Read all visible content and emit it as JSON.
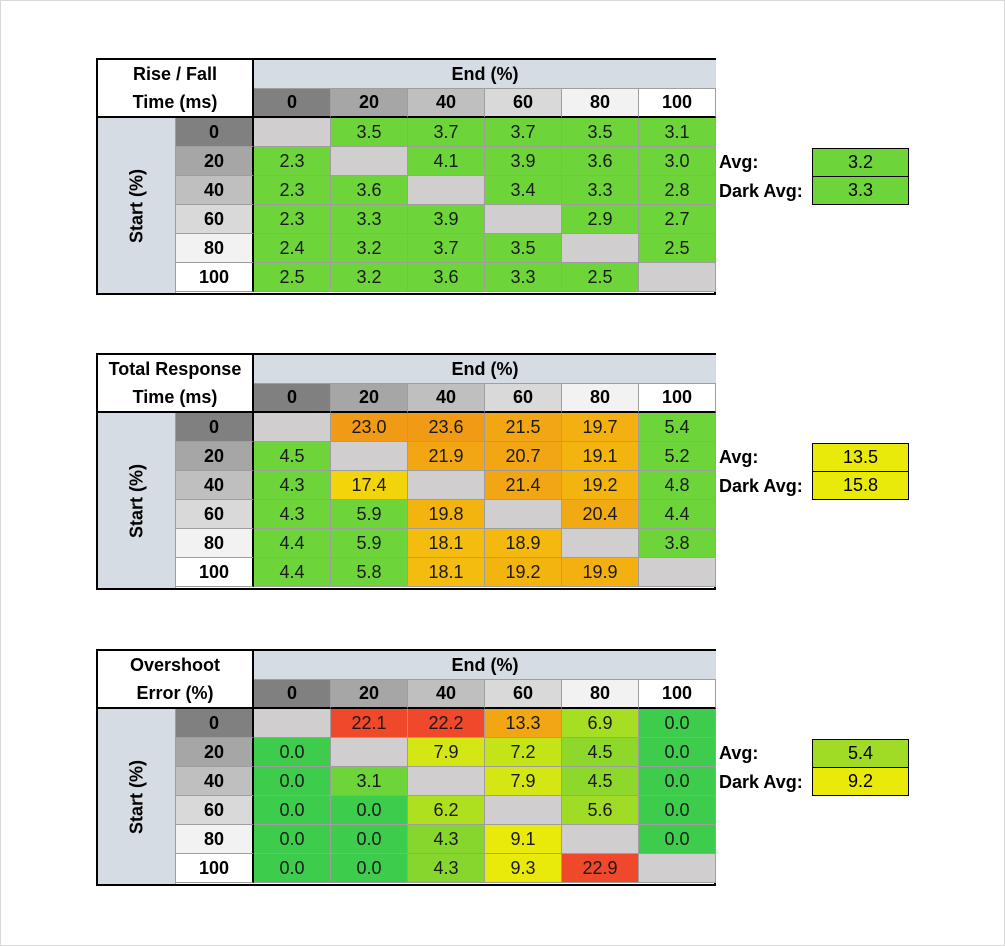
{
  "tables": [
    {
      "title": "Rise / Fall\nTime (ms)",
      "end_header": "End (%)",
      "start_header": "Start (%)",
      "columns": [
        "0",
        "20",
        "40",
        "60",
        "80",
        "100"
      ],
      "rows": [
        "0",
        "20",
        "40",
        "60",
        "80",
        "100"
      ],
      "values": [
        [
          "",
          "3.5",
          "3.7",
          "3.7",
          "3.5",
          "3.1"
        ],
        [
          "2.3",
          "",
          "4.1",
          "3.9",
          "3.6",
          "3.0"
        ],
        [
          "2.3",
          "3.6",
          "",
          "3.4",
          "3.3",
          "2.8"
        ],
        [
          "2.3",
          "3.3",
          "3.9",
          "",
          "2.9",
          "2.7"
        ],
        [
          "2.4",
          "3.2",
          "3.7",
          "3.5",
          "",
          "2.5"
        ],
        [
          "2.5",
          "3.2",
          "3.6",
          "3.3",
          "2.5",
          ""
        ]
      ],
      "colors": [
        [
          "#d0cece",
          "#6dd43a",
          "#6dd43a",
          "#6dd43a",
          "#6dd43a",
          "#6dd43a"
        ],
        [
          "#6dd43a",
          "#d0cece",
          "#6dd43a",
          "#6dd43a",
          "#6dd43a",
          "#6dd43a"
        ],
        [
          "#6dd43a",
          "#6dd43a",
          "#d0cece",
          "#6dd43a",
          "#6dd43a",
          "#6dd43a"
        ],
        [
          "#6dd43a",
          "#6dd43a",
          "#6dd43a",
          "#d0cece",
          "#6dd43a",
          "#6dd43a"
        ],
        [
          "#6dd43a",
          "#6dd43a",
          "#6dd43a",
          "#6dd43a",
          "#d0cece",
          "#6dd43a"
        ],
        [
          "#6dd43a",
          "#6dd43a",
          "#6dd43a",
          "#6dd43a",
          "#6dd43a",
          "#d0cece"
        ]
      ],
      "avg_label": "Avg:",
      "avg_value": "3.2",
      "avg_color": "#6dd43a",
      "dark_avg_label": "Dark Avg:",
      "dark_avg_value": "3.3",
      "dark_avg_color": "#6dd43a"
    },
    {
      "title": "Total Response\nTime (ms)",
      "end_header": "End (%)",
      "start_header": "Start (%)",
      "columns": [
        "0",
        "20",
        "40",
        "60",
        "80",
        "100"
      ],
      "rows": [
        "0",
        "20",
        "40",
        "60",
        "80",
        "100"
      ],
      "values": [
        [
          "",
          "23.0",
          "23.6",
          "21.5",
          "19.7",
          "5.4"
        ],
        [
          "4.5",
          "",
          "21.9",
          "20.7",
          "19.1",
          "5.2"
        ],
        [
          "4.3",
          "17.4",
          "",
          "21.4",
          "19.2",
          "4.8"
        ],
        [
          "4.3",
          "5.9",
          "19.8",
          "",
          "20.4",
          "4.4"
        ],
        [
          "4.4",
          "5.9",
          "18.1",
          "18.9",
          "",
          "3.8"
        ],
        [
          "4.4",
          "5.8",
          "18.1",
          "19.2",
          "19.9",
          ""
        ]
      ],
      "colors": [
        [
          "#d0cece",
          "#f09a16",
          "#f09a16",
          "#f2a614",
          "#f4b010",
          "#6dd43a"
        ],
        [
          "#6dd43a",
          "#d0cece",
          "#f2a614",
          "#f2a614",
          "#f4b410",
          "#6dd43a"
        ],
        [
          "#6dd43a",
          "#f2d40a",
          "#d0cece",
          "#f2a614",
          "#f4b410",
          "#6dd43a"
        ],
        [
          "#6dd43a",
          "#6dd43a",
          "#f4b410",
          "#d0cece",
          "#f2aa14",
          "#6dd43a"
        ],
        [
          "#6dd43a",
          "#6dd43a",
          "#f4bc0e",
          "#f4b80e",
          "#d0cece",
          "#6dd43a"
        ],
        [
          "#6dd43a",
          "#6dd43a",
          "#f4bc0e",
          "#f4b410",
          "#f4b010",
          "#d0cece"
        ]
      ],
      "avg_label": "Avg:",
      "avg_value": "13.5",
      "avg_color": "#eaea0a",
      "dark_avg_label": "Dark Avg:",
      "dark_avg_value": "15.8",
      "dark_avg_color": "#eaea0a"
    },
    {
      "title": "Overshoot\nError (%)",
      "end_header": "End (%)",
      "start_header": "Start (%)",
      "columns": [
        "0",
        "20",
        "40",
        "60",
        "80",
        "100"
      ],
      "rows": [
        "0",
        "20",
        "40",
        "60",
        "80",
        "100"
      ],
      "values": [
        [
          "",
          "22.1",
          "22.2",
          "13.3",
          "6.9",
          "0.0"
        ],
        [
          "0.0",
          "",
          "7.9",
          "7.2",
          "4.5",
          "0.0"
        ],
        [
          "0.0",
          "3.1",
          "",
          "7.9",
          "4.5",
          "0.0"
        ],
        [
          "0.0",
          "0.0",
          "6.2",
          "",
          "5.6",
          "0.0"
        ],
        [
          "0.0",
          "0.0",
          "4.3",
          "9.1",
          "",
          "0.0"
        ],
        [
          "0.0",
          "0.0",
          "4.3",
          "9.3",
          "22.9",
          ""
        ]
      ],
      "colors": [
        [
          "#d0cece",
          "#f0482a",
          "#f0482a",
          "#f2a614",
          "#a6de24",
          "#3ecc4c"
        ],
        [
          "#3ecc4c",
          "#d0cece",
          "#d4e614",
          "#c4e418",
          "#8ed82c",
          "#3ecc4c"
        ],
        [
          "#3ecc4c",
          "#6dd43a",
          "#d0cece",
          "#d4e614",
          "#8ed82c",
          "#3ecc4c"
        ],
        [
          "#3ecc4c",
          "#3ecc4c",
          "#aee020",
          "#d0cece",
          "#a0dc26",
          "#3ecc4c"
        ],
        [
          "#3ecc4c",
          "#3ecc4c",
          "#86d62e",
          "#eaea0a",
          "#d0cece",
          "#3ecc4c"
        ],
        [
          "#3ecc4c",
          "#3ecc4c",
          "#86d62e",
          "#eaea0a",
          "#f0482a",
          "#d0cece"
        ]
      ],
      "avg_label": "Avg:",
      "avg_value": "5.4",
      "avg_color": "#a0dc26",
      "dark_avg_label": "Dark Avg:",
      "dark_avg_value": "9.2",
      "dark_avg_color": "#eaea0a"
    }
  ],
  "column_header_colors": [
    "#808080",
    "#a6a6a6",
    "#bfbfbf",
    "#d9d9d9",
    "#f2f2f2",
    "#ffffff"
  ],
  "row_header_colors": [
    "#808080",
    "#a6a6a6",
    "#bfbfbf",
    "#d9d9d9",
    "#f2f2f2",
    "#ffffff"
  ]
}
